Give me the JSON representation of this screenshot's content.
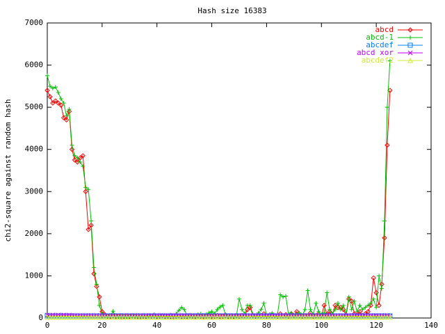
{
  "chart_data": {
    "type": "line",
    "title": "Hash size 16383",
    "y_label": "chi2-square against random hash",
    "xlim": [
      0,
      140
    ],
    "xticks": [
      0,
      20,
      40,
      60,
      80,
      100,
      120,
      140
    ],
    "ylim": [
      0,
      7000
    ],
    "yticks": [
      0,
      1000,
      2000,
      3000,
      4000,
      5000,
      6000,
      7000
    ],
    "grid": false,
    "legend": "top-right",
    "x": [
      0,
      1,
      2,
      3,
      4,
      5,
      6,
      7,
      8,
      9,
      10,
      11,
      12,
      13,
      14,
      15,
      16,
      17,
      18,
      19,
      20,
      21,
      22,
      23,
      24,
      25,
      26,
      27,
      28,
      29,
      30,
      31,
      32,
      33,
      34,
      35,
      36,
      37,
      38,
      39,
      40,
      41,
      42,
      43,
      44,
      45,
      46,
      47,
      48,
      49,
      50,
      51,
      52,
      53,
      54,
      55,
      56,
      57,
      58,
      59,
      60,
      61,
      62,
      63,
      64,
      65,
      66,
      67,
      68,
      69,
      70,
      71,
      72,
      73,
      74,
      75,
      76,
      77,
      78,
      79,
      80,
      81,
      82,
      83,
      84,
      85,
      86,
      87,
      88,
      89,
      90,
      91,
      92,
      93,
      94,
      95,
      96,
      97,
      98,
      99,
      100,
      101,
      102,
      103,
      104,
      105,
      106,
      107,
      108,
      109,
      110,
      111,
      112,
      113,
      114,
      115,
      116,
      117,
      118,
      119,
      120,
      121,
      122,
      123,
      124,
      125
    ],
    "series": [
      {
        "name": "abcd",
        "color": "#ff0000",
        "marker": "diamond",
        "values": [
          5400,
          5250,
          5100,
          5150,
          5100,
          5050,
          4750,
          4700,
          4900,
          4000,
          3750,
          3700,
          3800,
          3850,
          3000,
          2100,
          2200,
          1050,
          750,
          500,
          150,
          80,
          40,
          30,
          50,
          30,
          40,
          20,
          30,
          40,
          30,
          50,
          40,
          30,
          20,
          40,
          30,
          50,
          40,
          60,
          30,
          40,
          50,
          30,
          40,
          30,
          20,
          40,
          50,
          30,
          40,
          30,
          60,
          40,
          30,
          50,
          40,
          30,
          40,
          50,
          30,
          40,
          60,
          30,
          40,
          50,
          30,
          40,
          30,
          50,
          40,
          60,
          50,
          200,
          250,
          60,
          40,
          50,
          60,
          100,
          40,
          50,
          60,
          50,
          40,
          100,
          50,
          80,
          40,
          100,
          60,
          150,
          50,
          40,
          60,
          50,
          120,
          40,
          60,
          100,
          50,
          300,
          80,
          150,
          60,
          300,
          250,
          250,
          200,
          60,
          450,
          400,
          100,
          80,
          150,
          60,
          100,
          150,
          300,
          950,
          600,
          300,
          800,
          1900,
          4100,
          5400
        ]
      },
      {
        "name": "abcd-1",
        "color": "#00c000",
        "marker": "plus",
        "values": [
          5750,
          5500,
          5450,
          5480,
          5350,
          5200,
          5100,
          4800,
          4950,
          4100,
          3850,
          3800,
          3700,
          3600,
          3100,
          3050,
          2300,
          1200,
          800,
          300,
          100,
          50,
          40,
          60,
          160,
          40,
          30,
          50,
          40,
          30,
          50,
          40,
          60,
          30,
          40,
          50,
          30,
          40,
          60,
          80,
          50,
          40,
          60,
          30,
          50,
          70,
          60,
          100,
          180,
          250,
          200,
          60,
          40,
          50,
          60,
          80,
          100,
          60,
          80,
          120,
          150,
          100,
          200,
          260,
          300,
          80,
          60,
          50,
          40,
          60,
          450,
          200,
          100,
          300,
          300,
          80,
          60,
          120,
          200,
          350,
          60,
          80,
          120,
          60,
          100,
          550,
          500,
          520,
          80,
          120,
          60,
          80,
          120,
          60,
          200,
          650,
          200,
          80,
          350,
          150,
          80,
          120,
          600,
          200,
          100,
          200,
          350,
          200,
          300,
          100,
          500,
          200,
          400,
          150,
          300,
          200,
          250,
          300,
          350,
          450,
          250,
          1000,
          700,
          2300,
          5000,
          6100
        ]
      },
      {
        "name": "abcdef",
        "color": "#0080ff",
        "marker": "square",
        "values": [
          50,
          50,
          50,
          50,
          50,
          50,
          50,
          50,
          50,
          50,
          50,
          50,
          50,
          50,
          50,
          50,
          50,
          50,
          50,
          50,
          50,
          50,
          50,
          50,
          50,
          50,
          50,
          50,
          50,
          50,
          50,
          50,
          50,
          50,
          50,
          50,
          50,
          50,
          50,
          50,
          50,
          50,
          50,
          50,
          50,
          50,
          50,
          50,
          50,
          50,
          50,
          50,
          50,
          50,
          50,
          50,
          50,
          50,
          50,
          50,
          50,
          50,
          50,
          50,
          50,
          50,
          50,
          50,
          50,
          50,
          50,
          50,
          50,
          50,
          50,
          50,
          50,
          50,
          50,
          50,
          50,
          50,
          50,
          50,
          50,
          50,
          50,
          50,
          50,
          50,
          50,
          50,
          50,
          50,
          50,
          50,
          50,
          50,
          50,
          50,
          50,
          50,
          50,
          50,
          50,
          50,
          50,
          50,
          50,
          50,
          50,
          50,
          50,
          50,
          50,
          50,
          50,
          50,
          50,
          50,
          50,
          50,
          50,
          50,
          50,
          50
        ]
      },
      {
        "name": "abcd xor",
        "color": "#c000ff",
        "marker": "cross",
        "values": [
          70,
          60,
          70,
          60,
          70,
          60,
          70,
          60,
          70,
          60,
          60,
          50,
          60,
          50,
          60,
          50,
          60,
          50,
          60,
          50,
          60,
          50,
          60,
          50,
          60,
          50,
          60,
          50,
          60,
          50,
          60,
          50,
          60,
          50,
          60,
          50,
          60,
          50,
          60,
          50,
          60,
          50,
          60,
          50,
          60,
          50,
          60,
          50,
          60,
          50,
          60,
          50,
          60,
          50,
          60,
          50,
          60,
          50,
          60,
          50,
          60,
          50,
          60,
          50,
          60,
          50,
          60,
          50,
          60,
          50,
          60,
          50,
          60,
          50,
          60,
          50,
          60,
          50,
          60,
          50,
          60,
          50,
          60,
          50,
          60,
          50,
          60,
          50,
          60,
          50,
          60,
          50,
          60,
          50,
          60,
          50,
          60,
          50,
          60,
          50,
          60,
          50,
          60,
          50,
          60,
          50,
          60,
          50,
          60,
          50,
          60,
          50,
          60,
          50,
          60,
          50,
          60,
          50,
          60,
          50,
          60,
          50,
          60,
          50,
          60,
          50
        ]
      },
      {
        "name": "abcdef2",
        "color": "#ccee33",
        "marker": "triangle",
        "values": [
          20,
          20,
          20,
          20,
          20,
          20,
          20,
          20,
          20,
          20,
          20,
          20,
          20,
          20,
          20,
          20,
          20,
          20,
          20,
          20,
          20,
          20,
          20,
          20,
          20,
          20,
          20,
          20,
          20,
          20,
          20,
          20,
          20,
          20,
          20,
          20,
          20,
          20,
          20,
          20,
          20,
          20,
          20,
          20,
          20,
          20,
          20,
          20,
          20,
          20,
          20,
          20,
          20,
          20,
          20,
          20,
          20,
          20,
          20,
          20,
          20,
          20,
          20,
          20,
          20,
          20,
          20,
          20,
          20,
          20,
          20,
          20,
          20,
          20,
          20,
          20,
          20,
          20,
          20,
          20,
          20,
          20,
          20,
          20,
          20,
          20,
          20,
          20,
          20,
          20,
          20,
          20,
          20,
          20,
          20,
          20,
          20,
          20,
          20,
          20,
          20,
          20,
          20,
          20,
          20,
          20,
          20,
          20,
          20,
          20,
          20,
          20,
          20,
          20,
          20,
          20,
          20,
          20,
          20,
          20,
          20,
          20,
          20,
          20,
          20,
          20
        ]
      }
    ]
  }
}
